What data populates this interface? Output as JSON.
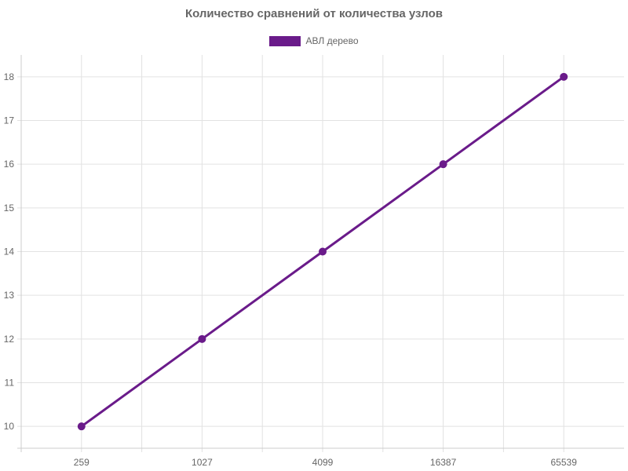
{
  "chart_data": {
    "type": "line",
    "title": "Количество сравнений от количества узлов",
    "categories": [
      "259",
      "1027",
      "4099",
      "16387",
      "65539"
    ],
    "series": [
      {
        "name": "АВЛ дерево",
        "values": [
          10,
          12,
          14,
          16,
          18
        ],
        "color": "#6a1b8a"
      }
    ],
    "yticks": [
      10,
      11,
      12,
      13,
      14,
      15,
      16,
      17,
      18
    ],
    "ylim": [
      9.5,
      18.5
    ],
    "grid": true,
    "legend_position": "top"
  }
}
